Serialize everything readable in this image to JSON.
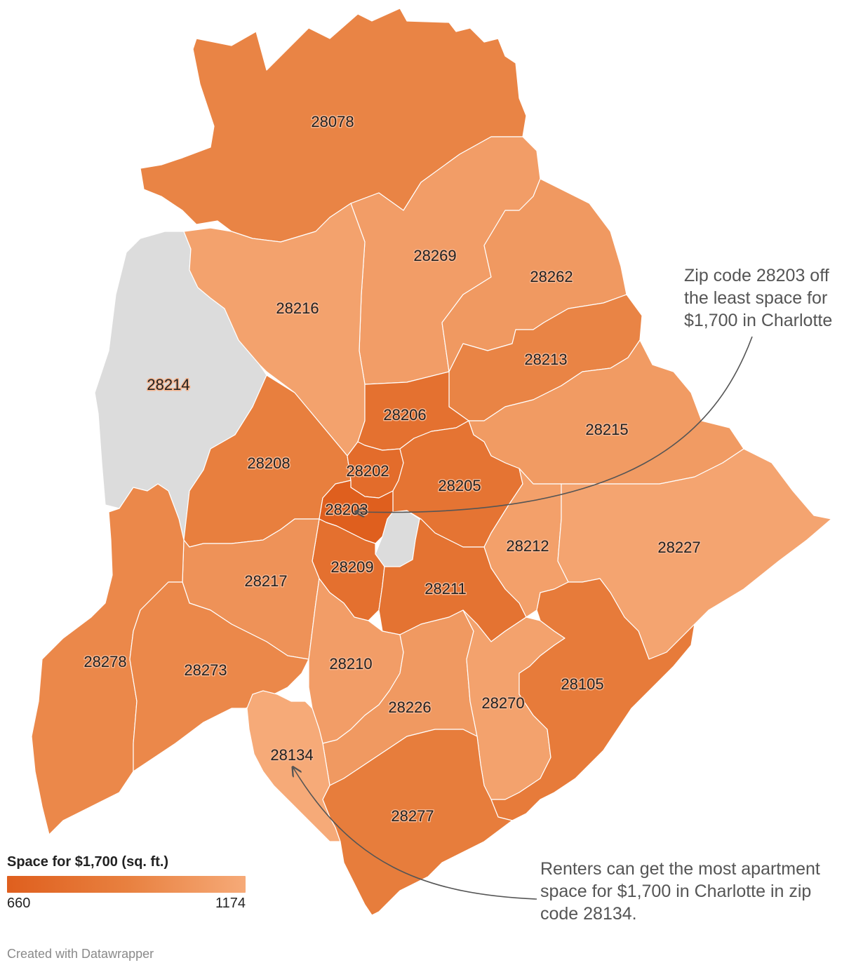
{
  "colors": {
    "low": "#df5f1e",
    "mid": "#e8803f",
    "high": "#f6aa78",
    "no_data": "#dcdcdc",
    "annotation_text": "#555555",
    "arrow": "#555555"
  },
  "legend": {
    "title": "Space for $1,700 (sq. ft.)",
    "min_label": "660",
    "max_label": "1174",
    "min_value": 660,
    "max_value": 1174
  },
  "zip_codes": [
    {
      "zip": "28078",
      "level": 0.55
    },
    {
      "zip": "28269",
      "level": 0.85
    },
    {
      "zip": "28262",
      "level": 0.8
    },
    {
      "zip": "28216",
      "level": 0.9
    },
    {
      "zip": "28214",
      "level": null
    },
    {
      "zip": "28213",
      "level": 0.55
    },
    {
      "zip": "28206",
      "level": 0.28
    },
    {
      "zip": "28215",
      "level": 0.82
    },
    {
      "zip": "28208",
      "level": 0.48
    },
    {
      "zip": "28202",
      "level": 0.2
    },
    {
      "zip": "28205",
      "level": 0.32
    },
    {
      "zip": "28203",
      "level": 0.0
    },
    {
      "zip": "28212",
      "level": 0.88
    },
    {
      "zip": "28227",
      "level": 0.93
    },
    {
      "zip": "28209",
      "level": 0.25
    },
    {
      "zip": "28217",
      "level": 0.72
    },
    {
      "zip": "28211",
      "level": 0.3
    },
    {
      "zip": "28278",
      "level": 0.6
    },
    {
      "zip": "28273",
      "level": 0.6
    },
    {
      "zip": "28210",
      "level": 0.85
    },
    {
      "zip": "28105",
      "level": 0.42
    },
    {
      "zip": "28226",
      "level": 0.8
    },
    {
      "zip": "28270",
      "level": 0.9
    },
    {
      "zip": "28134",
      "level": 1.0
    },
    {
      "zip": "28277",
      "level": 0.45
    }
  ],
  "annotations": {
    "top": "Zip code 28203 off the least space for $1,700 in Charlotte",
    "bottom": "Renters can get the most apartment space for $1,700 in Charlotte in zip code 28134."
  },
  "credit": "Created with Datawrapper"
}
